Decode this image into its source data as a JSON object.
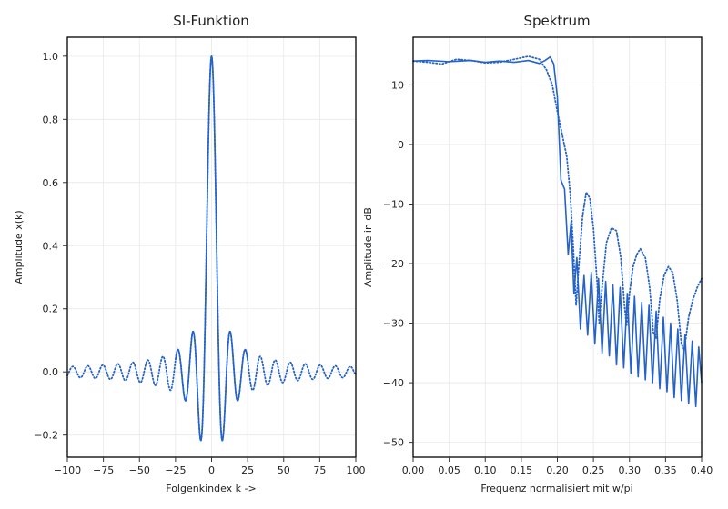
{
  "chart_data": [
    {
      "type": "line",
      "title": "SI-Funktion",
      "xlabel": "Folgenkindex k ->",
      "ylabel": "Amplitude x(k)",
      "xlim": [
        -100,
        100
      ],
      "ylim": [
        -0.27,
        1.06
      ],
      "xticks": [
        -100,
        -75,
        -50,
        -25,
        0,
        25,
        50,
        75,
        100
      ],
      "xtick_labels": [
        "−100",
        "−75",
        "−50",
        "−25",
        "0",
        "25",
        "50",
        "75",
        "100"
      ],
      "yticks": [
        -0.2,
        0.0,
        0.2,
        0.4,
        0.6,
        0.8,
        1.0
      ],
      "ytick_labels": [
        "−0.2",
        "0.0",
        "0.2",
        "0.4",
        "0.6",
        "0.8",
        "1.0"
      ],
      "grid": true,
      "color": "#2563c8",
      "series": [
        {
          "style": "solid",
          "function": "sinc",
          "k_range": [
            -25,
            25
          ],
          "main_lobe_zero": 5.2,
          "samples": 400
        },
        {
          "style": "dotted",
          "function": "sinc",
          "k_range": [
            -100,
            100
          ],
          "main_lobe_zero": 5.2,
          "samples": 1200
        }
      ]
    },
    {
      "type": "line",
      "title": "Spektrum",
      "xlabel": "Frequenz normalisiert mit w/pi",
      "ylabel": "Amplitude in dB",
      "xlim": [
        0.0,
        0.4
      ],
      "ylim": [
        -52.5,
        18
      ],
      "xticks": [
        0.0,
        0.05,
        0.1,
        0.15,
        0.2,
        0.25,
        0.3,
        0.35,
        0.4
      ],
      "xtick_labels": [
        "0.00",
        "0.05",
        "0.10",
        "0.15",
        "0.20",
        "0.25",
        "0.30",
        "0.35",
        "0.40"
      ],
      "yticks": [
        10,
        0,
        -10,
        -20,
        -30,
        -40,
        -50
      ],
      "ytick_labels": [
        "10",
        "0",
        "−10",
        "−20",
        "−30",
        "−40",
        "−50"
      ],
      "grid": true,
      "color": "#2563c8",
      "series": [
        {
          "style": "solid",
          "passband_level_db": 14,
          "points": [
            [
              0.0,
              14.0
            ],
            [
              0.02,
              14.1
            ],
            [
              0.05,
              13.9
            ],
            [
              0.08,
              14.1
            ],
            [
              0.1,
              13.8
            ],
            [
              0.12,
              14.0
            ],
            [
              0.14,
              13.8
            ],
            [
              0.16,
              14.1
            ],
            [
              0.175,
              13.6
            ],
            [
              0.183,
              14.1
            ],
            [
              0.19,
              14.7
            ],
            [
              0.195,
              13.5
            ],
            [
              0.2,
              8.0
            ],
            [
              0.205,
              -6.0
            ],
            [
              0.21,
              -7.5
            ],
            [
              0.215,
              -18.5
            ],
            [
              0.219,
              -13.0
            ],
            [
              0.223,
              -25.0
            ],
            [
              0.227,
              -19.0
            ],
            [
              0.232,
              -31.0
            ],
            [
              0.237,
              -22.0
            ],
            [
              0.242,
              -32.0
            ],
            [
              0.247,
              -21.5
            ],
            [
              0.252,
              -33.5
            ],
            [
              0.257,
              -22.5
            ],
            [
              0.262,
              -35.0
            ],
            [
              0.267,
              -23.0
            ],
            [
              0.272,
              -35.5
            ],
            [
              0.277,
              -23.5
            ],
            [
              0.282,
              -37.0
            ],
            [
              0.287,
              -24.0
            ],
            [
              0.292,
              -37.5
            ],
            [
              0.297,
              -25.0
            ],
            [
              0.302,
              -38.5
            ],
            [
              0.307,
              -25.5
            ],
            [
              0.312,
              -39.0
            ],
            [
              0.317,
              -26.5
            ],
            [
              0.322,
              -39.5
            ],
            [
              0.327,
              -27.0
            ],
            [
              0.332,
              -40.0
            ],
            [
              0.337,
              -28.0
            ],
            [
              0.342,
              -41.0
            ],
            [
              0.347,
              -29.0
            ],
            [
              0.352,
              -41.5
            ],
            [
              0.357,
              -30.0
            ],
            [
              0.362,
              -42.5
            ],
            [
              0.367,
              -31.0
            ],
            [
              0.372,
              -43.0
            ],
            [
              0.377,
              -32.0
            ],
            [
              0.382,
              -43.5
            ],
            [
              0.387,
              -33.0
            ],
            [
              0.392,
              -44.0
            ],
            [
              0.396,
              -34.0
            ],
            [
              0.4,
              -40.0
            ]
          ]
        },
        {
          "style": "dotted",
          "points": [
            [
              0.0,
              14.0
            ],
            [
              0.02,
              13.8
            ],
            [
              0.04,
              13.5
            ],
            [
              0.06,
              14.3
            ],
            [
              0.08,
              14.1
            ],
            [
              0.1,
              13.7
            ],
            [
              0.12,
              13.8
            ],
            [
              0.14,
              14.3
            ],
            [
              0.16,
              14.8
            ],
            [
              0.175,
              14.3
            ],
            [
              0.185,
              12.5
            ],
            [
              0.193,
              10.0
            ],
            [
              0.2,
              5.5
            ],
            [
              0.207,
              1.5
            ],
            [
              0.213,
              -2.0
            ],
            [
              0.218,
              -8.5
            ],
            [
              0.222,
              -17.0
            ],
            [
              0.226,
              -27.0
            ],
            [
              0.23,
              -20.0
            ],
            [
              0.235,
              -12.0
            ],
            [
              0.24,
              -8.0
            ],
            [
              0.245,
              -9.0
            ],
            [
              0.25,
              -14.0
            ],
            [
              0.255,
              -23.0
            ],
            [
              0.258,
              -30.0
            ],
            [
              0.262,
              -24.0
            ],
            [
              0.268,
              -16.5
            ],
            [
              0.275,
              -14.0
            ],
            [
              0.282,
              -14.5
            ],
            [
              0.288,
              -19.0
            ],
            [
              0.293,
              -27.0
            ],
            [
              0.296,
              -30.5
            ],
            [
              0.3,
              -25.0
            ],
            [
              0.305,
              -20.5
            ],
            [
              0.31,
              -18.5
            ],
            [
              0.315,
              -17.5
            ],
            [
              0.322,
              -19.0
            ],
            [
              0.328,
              -24.0
            ],
            [
              0.333,
              -31.5
            ],
            [
              0.337,
              -32.5
            ],
            [
              0.342,
              -26.0
            ],
            [
              0.348,
              -22.0
            ],
            [
              0.354,
              -20.5
            ],
            [
              0.36,
              -21.5
            ],
            [
              0.366,
              -26.0
            ],
            [
              0.372,
              -33.5
            ],
            [
              0.376,
              -34.5
            ],
            [
              0.382,
              -29.0
            ],
            [
              0.388,
              -26.0
            ],
            [
              0.394,
              -24.0
            ],
            [
              0.4,
              -22.5
            ]
          ]
        }
      ]
    }
  ]
}
